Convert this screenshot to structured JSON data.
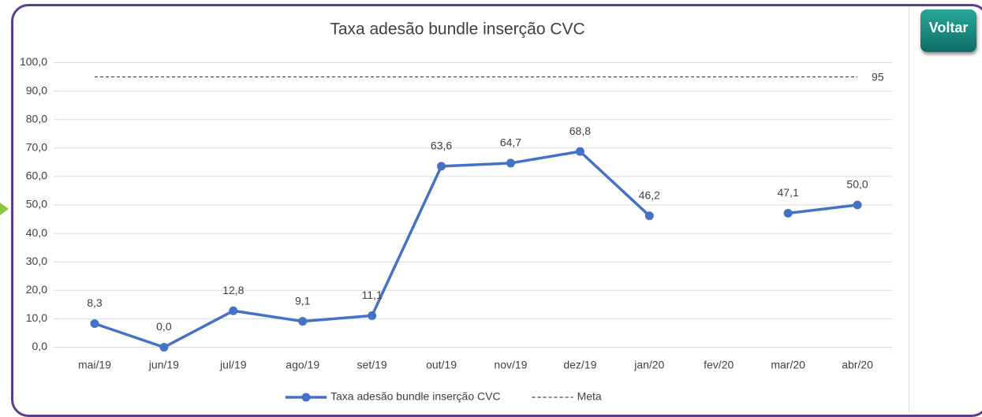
{
  "button": "Voltar",
  "chart_data": {
    "type": "line",
    "title": "Taxa adesão bundle inserção CVC",
    "categories": [
      "mai/19",
      "jun/19",
      "jul/19",
      "ago/19",
      "set/19",
      "out/19",
      "nov/19",
      "dez/19",
      "jan/20",
      "fev/20",
      "mar/20",
      "abr/20"
    ],
    "series": [
      {
        "name": "Taxa adesão bundle inserção CVC",
        "color": "#4472c4",
        "values": [
          8.3,
          0.0,
          12.8,
          9.1,
          11.1,
          63.6,
          64.7,
          68.8,
          46.2,
          null,
          47.1,
          50.0
        ],
        "value_labels": [
          "8,3",
          "0,0",
          "12,8",
          "9,1",
          "11,1",
          "63,6",
          "64,7",
          "68,8",
          "46,2",
          null,
          "47,1",
          "50,0"
        ]
      },
      {
        "name": "Meta",
        "color": "#404040",
        "dashed": true,
        "values": [
          95,
          95,
          95,
          95,
          95,
          95,
          95,
          95,
          95,
          95,
          95,
          95
        ]
      }
    ],
    "ylim": [
      0,
      100
    ],
    "yticks": [
      {
        "value": 0,
        "label": "0,0"
      },
      {
        "value": 10,
        "label": "10,0"
      },
      {
        "value": 20,
        "label": "20,0"
      },
      {
        "value": 30,
        "label": "30,0"
      },
      {
        "value": 40,
        "label": "40,0"
      },
      {
        "value": 50,
        "label": "50,0"
      },
      {
        "value": 60,
        "label": "60,0"
      },
      {
        "value": 70,
        "label": "70,0"
      },
      {
        "value": 80,
        "label": "80,0"
      },
      {
        "value": 90,
        "label": "90,0"
      },
      {
        "value": 100,
        "label": "100,0"
      }
    ],
    "grid": true,
    "legend": "bottom"
  }
}
